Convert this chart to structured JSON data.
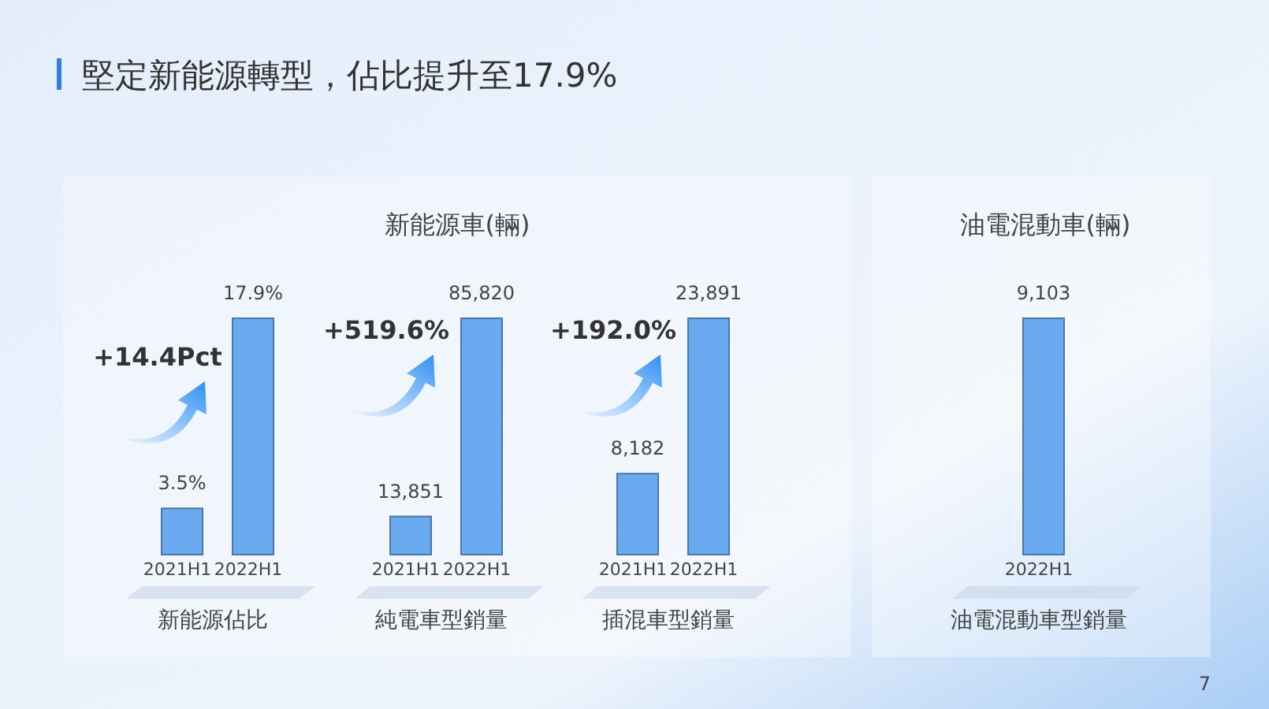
{
  "chart_data": [
    {
      "type": "bar",
      "title": "堅定新能源轉型，佔比提升至17.9%",
      "categories": [
        "2021H1",
        "2022H1"
      ],
      "values": [
        3.5,
        17.9
      ],
      "value_labels": [
        "3.5%",
        "17.9%"
      ],
      "color": "#6aaaf0",
      "xlabel": "新能源佔比",
      "annotations": [
        "+14.4Pct"
      ]
    },
    {
      "type": "bar",
      "subtitle": "新能源車(輛)",
      "categories": [
        "2021H1",
        "2022H1"
      ],
      "values": [
        13851,
        85820
      ],
      "value_labels": [
        "13,851",
        "85,820"
      ],
      "color": "#6aaaf0",
      "xlabel": "純電車型銷量",
      "annotations": [
        "+519.6%"
      ]
    },
    {
      "type": "bar",
      "categories": [
        "2021H1",
        "2022H1"
      ],
      "values": [
        8182,
        23891
      ],
      "value_labels": [
        "8,182",
        "23,891"
      ],
      "color": "#6aaaf0",
      "xlabel": "插混車型銷量",
      "annotations": [
        "+192.0%"
      ]
    },
    {
      "type": "bar",
      "subtitle": "油電混動車(輛)",
      "categories": [
        "2022H1"
      ],
      "values": [
        9103
      ],
      "value_labels": [
        "9,103"
      ],
      "color": "#6aaaf0",
      "xlabel": "油電混動車型銷量",
      "annotations": [
        "7"
      ]
    }
  ]
}
